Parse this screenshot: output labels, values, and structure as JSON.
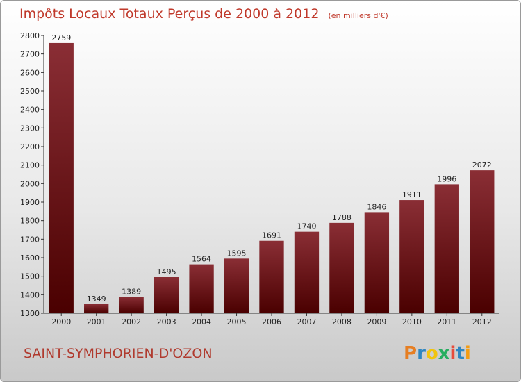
{
  "title": "Impôts Locaux Totaux Perçus de 2000 à 2012",
  "unit": "(en milliers d'€)",
  "commune": "SAINT-SYMPHORIEN-D'OZON",
  "logo": {
    "letters": [
      "P",
      "r",
      "o",
      "x",
      "i",
      "t",
      "i"
    ],
    "colors": [
      "#e67e22",
      "#2e86c1",
      "#f1c40f",
      "#27ae60",
      "#e74c3c",
      "#2e86c1",
      "#f39c12"
    ]
  },
  "colors": {
    "bar_top": "#8a2e35",
    "bar_bottom": "#4a0000",
    "title": "#c0392b"
  },
  "chart_data": {
    "type": "bar",
    "title": "Impôts Locaux Totaux Perçus de 2000 à 2012",
    "xlabel": "",
    "ylabel": "",
    "categories": [
      "2000",
      "2001",
      "2002",
      "2003",
      "2004",
      "2005",
      "2006",
      "2007",
      "2008",
      "2009",
      "2010",
      "2011",
      "2012"
    ],
    "values": [
      2759,
      1349,
      1389,
      1495,
      1564,
      1595,
      1691,
      1740,
      1788,
      1846,
      1911,
      1996,
      2072
    ],
    "ylim": [
      1300,
      2800
    ],
    "yticks": [
      1300,
      1400,
      1500,
      1600,
      1700,
      1800,
      1900,
      2000,
      2100,
      2200,
      2300,
      2400,
      2500,
      2600,
      2700,
      2800
    ],
    "grid": false,
    "legend": "none"
  }
}
